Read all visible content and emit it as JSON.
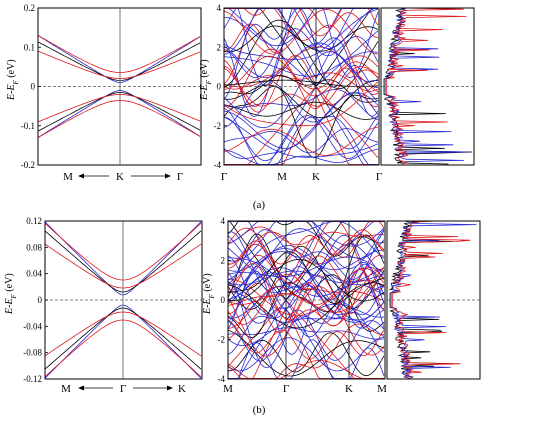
{
  "figure": {
    "panels": [
      {
        "id": "a",
        "caption": "(a)",
        "ylabel_main": "E-E",
        "ylabel_sub": "F",
        "ylabel_unit": " (eV)",
        "zoom": {
          "ylim": [
            -0.2,
            0.2
          ],
          "yticks": [
            "0.2",
            "0.1",
            "0",
            "-0.1",
            "-0.2"
          ],
          "kpoints": [
            "M",
            "K",
            "Γ"
          ],
          "kpoint_arrows": true
        },
        "bands": {
          "ylim": [
            -4,
            4
          ],
          "yticks": [
            "4",
            "2",
            "0",
            "-2",
            "-4"
          ],
          "kpoints": [
            "Γ",
            "M",
            "K",
            "Γ"
          ]
        }
      },
      {
        "id": "b",
        "caption": "(b)",
        "ylabel_main": "E-E",
        "ylabel_sub": "F",
        "ylabel_unit": " (eV)",
        "zoom": {
          "ylim": [
            -0.12,
            0.12
          ],
          "yticks": [
            "0.12",
            "0.08",
            "0.04",
            "0",
            "-0.04",
            "-0.08",
            "-0.12"
          ],
          "kpoints": [
            "M",
            "Γ",
            "K"
          ],
          "kpoint_arrows": true
        },
        "bands": {
          "ylim": [
            -4,
            4
          ],
          "yticks": [
            "4",
            "2",
            "0",
            "-2",
            "-4"
          ],
          "kpoints": [
            "M",
            "Γ",
            "K",
            "M"
          ]
        }
      }
    ],
    "colors": {
      "black": "#000000",
      "red": "#e0161b",
      "blue": "#2a2ad6",
      "fermi": "#555555"
    }
  }
}
